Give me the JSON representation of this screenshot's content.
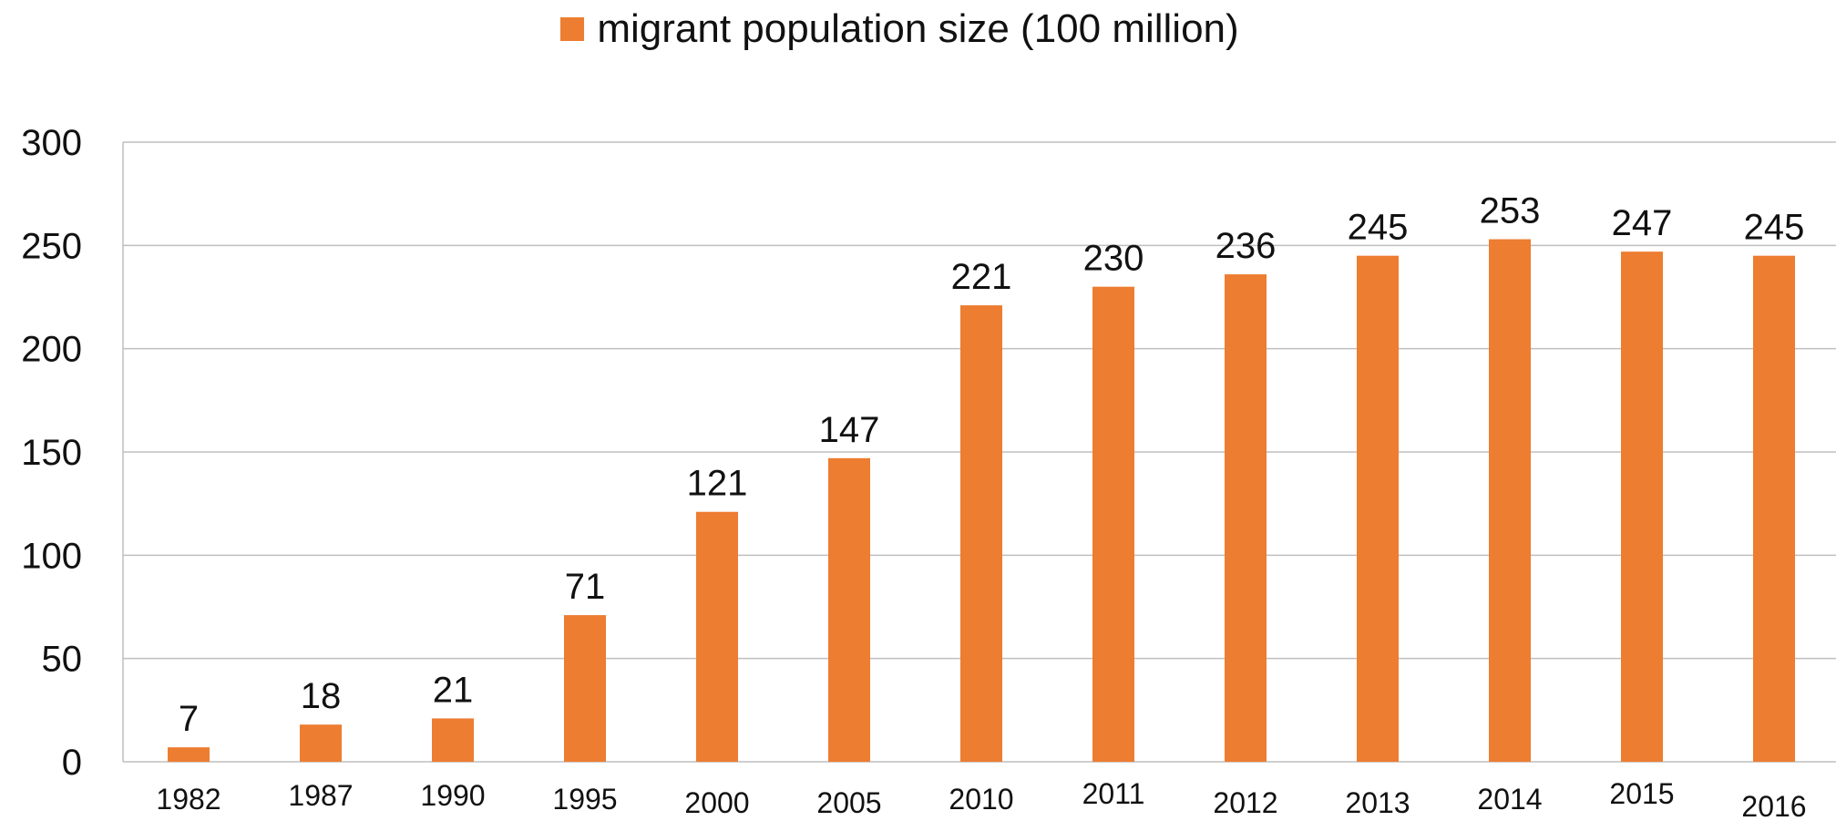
{
  "chart_data": {
    "type": "bar",
    "legend": {
      "label": "migrant population size  (100 million)",
      "position": "top"
    },
    "categories": [
      "1982",
      "1987",
      "1990",
      "1995",
      "2000",
      "2005",
      "2010",
      "2011",
      "2012",
      "2013",
      "2014",
      "2015",
      "2016"
    ],
    "series": [
      {
        "name": "migrant population size  (100 million)",
        "values": [
          7,
          18,
          21,
          71,
          121,
          147,
          221,
          230,
          236,
          245,
          253,
          247,
          245
        ]
      }
    ],
    "data_labels": [
      "7",
      "18",
      "21",
      "71",
      "121",
      "147",
      "221",
      "230",
      "236",
      "245",
      "253",
      "247",
      "245"
    ],
    "yticks": [
      "0",
      "50",
      "100",
      "150",
      "200",
      "250",
      "300"
    ],
    "ylim": [
      0,
      300
    ],
    "grid": true,
    "colors": {
      "bar": "#ED7D31",
      "grid": "#BFBFBF",
      "text": "#111111"
    }
  }
}
